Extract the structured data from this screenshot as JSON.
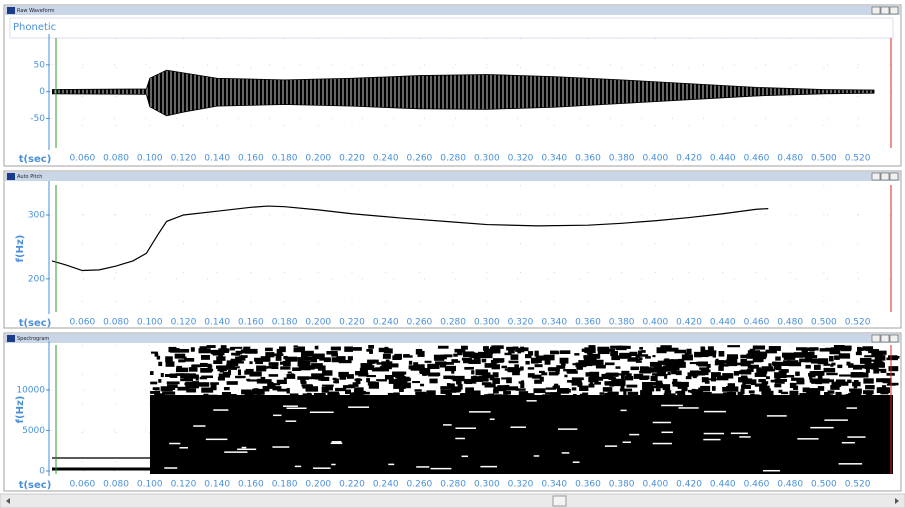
{
  "x_axis": {
    "label": "t(sec)",
    "xlim": [
      0.042,
      0.541
    ],
    "xticks": [
      {
        "value": 0.06,
        "label": "0.060"
      },
      {
        "value": 0.08,
        "label": "0.080"
      },
      {
        "value": 0.1,
        "label": "0.100"
      },
      {
        "value": 0.12,
        "label": "0.120"
      },
      {
        "value": 0.14,
        "label": "0.140"
      },
      {
        "value": 0.16,
        "label": "0.160"
      },
      {
        "value": 0.18,
        "label": "0.180"
      },
      {
        "value": 0.2,
        "label": "0.200"
      },
      {
        "value": 0.22,
        "label": "0.220"
      },
      {
        "value": 0.24,
        "label": "0.240"
      },
      {
        "value": 0.26,
        "label": "0.260"
      },
      {
        "value": 0.28,
        "label": "0.280"
      },
      {
        "value": 0.3,
        "label": "0.300"
      },
      {
        "value": 0.32,
        "label": "0.320"
      },
      {
        "value": 0.34,
        "label": "0.340"
      },
      {
        "value": 0.36,
        "label": "0.360"
      },
      {
        "value": 0.38,
        "label": "0.380"
      },
      {
        "value": 0.4,
        "label": "0.400"
      },
      {
        "value": 0.42,
        "label": "0.420"
      },
      {
        "value": 0.44,
        "label": "0.440"
      },
      {
        "value": 0.46,
        "label": "0.460"
      },
      {
        "value": 0.48,
        "label": "0.480"
      },
      {
        "value": 0.5,
        "label": "0.500"
      },
      {
        "value": 0.52,
        "label": "0.520"
      }
    ]
  },
  "panels": [
    {
      "title": "Raw Waveform",
      "tier": "Phonetic",
      "type": "waveform",
      "ylim": [
        -105,
        100
      ],
      "yticks": [
        -50,
        0,
        50
      ],
      "x": [
        0.042,
        0.098,
        0.1,
        0.11,
        0.12,
        0.14,
        0.18,
        0.22,
        0.26,
        0.3,
        0.34,
        0.38,
        0.42,
        0.46,
        0.5,
        0.53
      ],
      "max": [
        4,
        5,
        25,
        40,
        35,
        25,
        22,
        25,
        30,
        32,
        28,
        22,
        15,
        8,
        4,
        3
      ],
      "min": [
        -4,
        -5,
        -28,
        -45,
        -38,
        -27,
        -24,
        -27,
        -32,
        -33,
        -29,
        -22,
        -15,
        -8,
        -4,
        -3
      ]
    },
    {
      "title": "Auto Pitch",
      "type": "line",
      "ylabel": "f(Hz)",
      "ylim": [
        148,
        347
      ],
      "yticks": [
        200,
        300
      ],
      "x": [
        0.042,
        0.05,
        0.06,
        0.07,
        0.08,
        0.09,
        0.098,
        0.105,
        0.11,
        0.12,
        0.14,
        0.16,
        0.17,
        0.18,
        0.2,
        0.22,
        0.25,
        0.28,
        0.3,
        0.33,
        0.36,
        0.38,
        0.4,
        0.42,
        0.44,
        0.46,
        0.467
      ],
      "values": [
        228,
        222,
        213,
        214,
        220,
        228,
        240,
        270,
        290,
        300,
        306,
        312,
        314,
        313,
        308,
        302,
        295,
        289,
        285,
        283,
        284,
        287,
        291,
        296,
        302,
        309,
        310
      ]
    },
    {
      "title": "Spectrogram",
      "type": "spectrogram",
      "ylabel": "f(Hz)",
      "ylim": [
        -370,
        15550
      ],
      "yticks": [
        0,
        5000,
        10000
      ]
    }
  ]
}
